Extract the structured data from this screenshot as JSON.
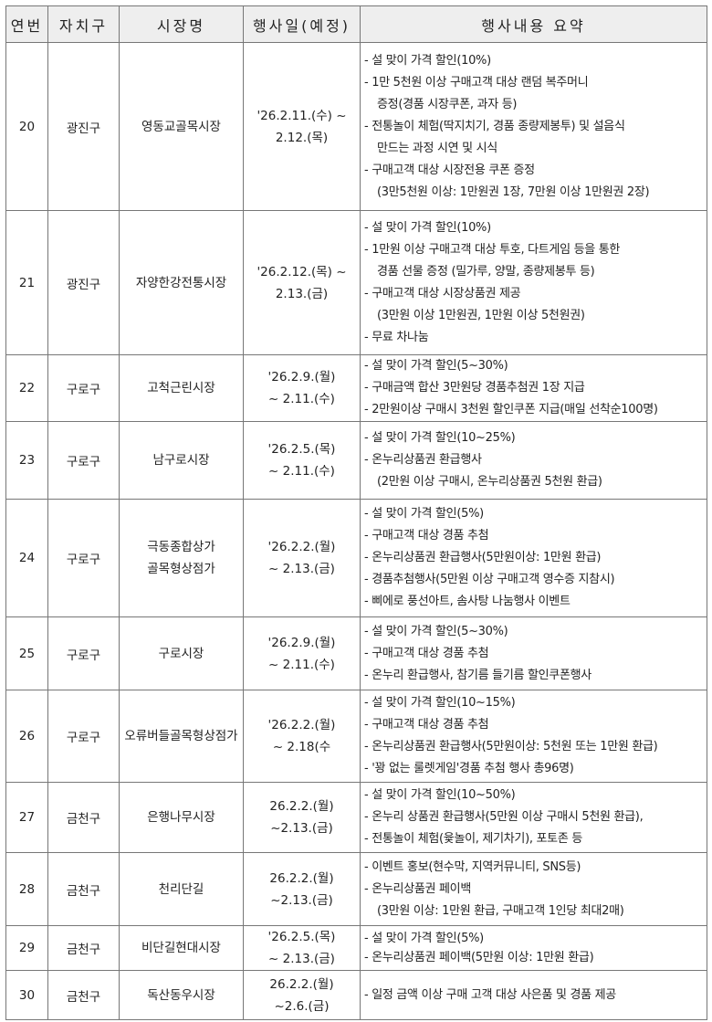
{
  "header": [
    "연번",
    "자치구",
    "시장명",
    "행사일(예정)",
    "행사내용 요약"
  ],
  "rows": [
    {
      "no": "20",
      "district": "광진구",
      "market": [
        "영동교골목시장"
      ],
      "date": [
        "'26.2.11.(수) ~",
        "2.12.(목)"
      ],
      "summary": [
        [
          "- 설 맞이 가격 할인(10%)"
        ],
        [
          "- 1만 5천원 이상 구매고객 대상 랜덤 복주머니",
          "증정(경품 시장쿠폰, 과자 등)"
        ],
        [
          "- 전통놀이 체험(딱지치기, 경품 종량제봉투) 및 설음식",
          "만드는 과정 시연 및 시식"
        ],
        [
          "- 구매고객 대상 시장전용 쿠폰 증정",
          "(3만5천원 이상: 1만원권 1장, 7만원 이상 1만원권 2장)"
        ]
      ]
    },
    {
      "no": "21",
      "district": "광진구",
      "market": [
        "자양한강전통시장"
      ],
      "date": [
        "'26.2.12.(목) ~",
        "2.13.(금)"
      ],
      "summary": [
        [
          "- 설 맞이 가격 할인(10%)"
        ],
        [
          "- 1만원 이상 구매고객 대상 투호, 다트게임 등을 통한",
          "경품 선물 증정 (밀가루, 양말, 종량제봉투 등)"
        ],
        [
          "- 구매고객 대상 시장상품권 제공",
          "(3만원 이상 1만원권, 1만원 이상 5천원권)"
        ],
        [
          "- 무료 차나눔"
        ]
      ]
    },
    {
      "no": "22",
      "district": "구로구",
      "market": [
        "고척근린시장"
      ],
      "date": [
        "'26.2.9.(월)",
        "~ 2.11.(수)"
      ],
      "summary": [
        [
          "- 설 맞이 가격 할인(5~30%)"
        ],
        [
          "- 구매금액 합산 3만원당 경품추첨권 1장 지급"
        ],
        [
          "- 2만원이상 구매시 3천원 할인쿠폰 지급(매일 선착순100명)"
        ]
      ]
    },
    {
      "no": "23",
      "district": "구로구",
      "market": [
        "남구로시장"
      ],
      "date": [
        "'26.2.5.(목)",
        "~ 2.11.(수)"
      ],
      "summary": [
        [
          "- 설 맞이 가격 할인(10~25%)"
        ],
        [
          "- 온누리상품권 환급행사",
          "(2만원 이상 구매시, 온누리상품권 5천원 환급)"
        ]
      ]
    },
    {
      "no": "24",
      "district": "구로구",
      "market": [
        "극동종합상가",
        "골목형상점가"
      ],
      "date": [
        "'26.2.2.(월)",
        "~ 2.13.(금)"
      ],
      "summary": [
        [
          "- 설 맞이 가격 할인(5%)"
        ],
        [
          "- 구매고객 대상 경품 추첨"
        ],
        [
          "- 온누리상품권 환급행사(5만원이상: 1만원 환급)"
        ],
        [
          "- 경품추첨행사(5만원 이상 구매고객 영수증 지참시)"
        ],
        [
          "- 삐에로 풍선아트, 솜사탕 나눔행사 이벤트"
        ]
      ]
    },
    {
      "no": "25",
      "district": "구로구",
      "market": [
        "구로시장"
      ],
      "date": [
        "'26.2.9.(월)",
        "~ 2.11.(수)"
      ],
      "summary": [
        [
          "- 설 맞이 가격 할인(5~30%)"
        ],
        [
          "- 구매고객 대상 경품 추첨"
        ],
        [
          "- 온누리 환급행사, 참기름 들기름 할인쿠폰행사"
        ]
      ]
    },
    {
      "no": "26",
      "district": "구로구",
      "market": [
        "오류버들골목형상점가"
      ],
      "date": [
        "'26.2.2.(월)",
        "~ 2.18(수"
      ],
      "summary": [
        [
          "- 설 맞이 가격 할인(10~15%)"
        ],
        [
          "- 구매고객 대상 경품 추첨"
        ],
        [
          "- 온누리상품권 환급행사(5만원이상: 5천원 또는 1만원 환급)"
        ],
        [
          "- '꽝 없는 룰렛게임'경품 추첨 행사 총96명)"
        ]
      ]
    },
    {
      "no": "27",
      "district": "금천구",
      "market": [
        "은행나무시장"
      ],
      "date": [
        "26.2.2.(월)",
        "~2.13.(금)"
      ],
      "summary": [
        [
          "- 설 맞이 가격 할인(10~50%)"
        ],
        [
          "- 온누리 상품권 환급행사(5만원 이상 구매시 5천원 환급),"
        ],
        [
          "- 전통놀이 체험(윷놀이, 제기차기), 포토존 등"
        ]
      ]
    },
    {
      "no": "28",
      "district": "금천구",
      "market": [
        "천리단길"
      ],
      "date": [
        "26.2.2.(월)",
        "~2.13.(금)"
      ],
      "summary": [
        [
          "- 이벤트 홍보(현수막, 지역커뮤니티, SNS등)"
        ],
        [
          "- 온누리상품권 페이백",
          "(3만원 이상: 1만원 환급, 구매고객 1인당 최대2매)"
        ]
      ]
    },
    {
      "no": "29",
      "district": "금천구",
      "market": [
        "비단길현대시장"
      ],
      "date": [
        "'26.2.5.(목)",
        "~ 2.13.(금)"
      ],
      "summary": [
        [
          "- 설 맞이 가격 할인(5%)"
        ],
        [
          "- 온누리상품권 페이백(5만원 이상: 1만원 환급)"
        ]
      ]
    },
    {
      "no": "30",
      "district": "금천구",
      "market": [
        "독산동우시장"
      ],
      "date": [
        "26.2.2.(월)",
        "~2.6.(금)"
      ],
      "summary": [
        [
          "- 일정 금액 이상 구매 고객 대상 사은품 및 경품 제공"
        ]
      ]
    }
  ]
}
